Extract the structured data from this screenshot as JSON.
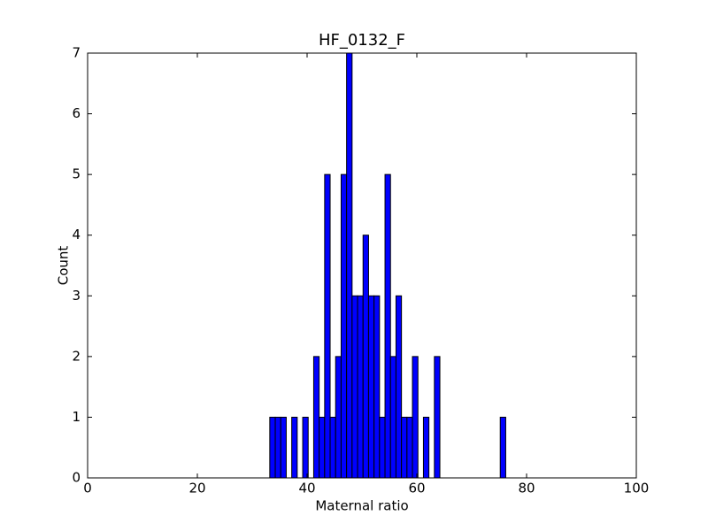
{
  "chart_data": {
    "type": "histogram",
    "title": "HF_0132_F",
    "xlabel": "Maternal ratio",
    "ylabel": "Count",
    "bins": [
      33.2,
      34.2,
      35.2,
      36.2,
      37.2,
      38.2,
      39.2,
      40.2,
      41.2,
      42.2,
      43.2,
      44.2,
      45.2,
      46.2,
      47.2,
      48.2,
      49.2,
      50.2,
      51.2,
      52.2,
      53.2,
      54.2,
      55.2,
      56.2,
      57.2,
      58.2,
      59.2,
      60.2,
      61.2,
      62.2,
      63.2,
      64.2,
      65.2,
      66.2,
      67.2,
      68.2,
      69.2,
      70.2,
      71.2,
      72.2,
      73.2,
      74.2,
      75.2,
      76.2
    ],
    "counts": [
      1,
      1,
      1,
      0,
      1,
      0,
      1,
      0,
      2,
      1,
      5,
      1,
      2,
      5,
      7,
      3,
      3,
      4,
      3,
      3,
      1,
      5,
      2,
      3,
      1,
      1,
      2,
      0,
      1,
      0,
      2,
      0,
      0,
      0,
      0,
      0,
      0,
      0,
      0,
      0,
      0,
      0,
      1
    ],
    "color": "#0000ff",
    "xlim": [
      0,
      100
    ],
    "xticks": [
      0,
      20,
      40,
      60,
      80,
      100
    ],
    "ylim": [
      0,
      7
    ],
    "yticks": [
      0,
      1,
      2,
      3,
      4,
      5,
      6,
      7
    ]
  }
}
